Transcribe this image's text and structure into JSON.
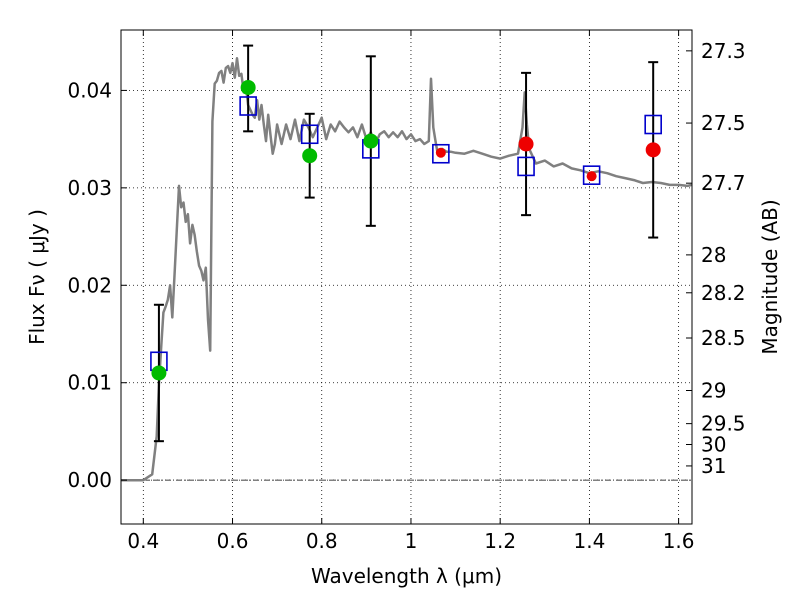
{
  "chart_data": {
    "type": "scatter",
    "title": "",
    "xlabel": "Wavelength  λ (μm)",
    "ylabel": "Flux  Fν  ( μJy )",
    "y2label": "Magnitude (AB)",
    "xlim": [
      0.35,
      1.63
    ],
    "ylim": [
      -0.0045,
      0.0462
    ],
    "x_ticks": [
      0.4,
      0.6,
      0.8,
      1.0,
      1.2,
      1.4,
      1.6
    ],
    "x_tick_labels": [
      "0.4",
      "0.6",
      "0.8",
      "1",
      "1.2",
      "1.4",
      "1.6"
    ],
    "y_ticks": [
      0.0,
      0.01,
      0.02,
      0.03,
      0.04
    ],
    "y_tick_labels": [
      "0.00",
      "0.01",
      "0.02",
      "0.03",
      "0.04"
    ],
    "y2_ticks": [
      {
        "label": "27.3",
        "flux": 0.04406
      },
      {
        "label": "27.5",
        "flux": 0.03665
      },
      {
        "label": "27.7",
        "flux": 0.03048
      },
      {
        "label": "28",
        "flux": 0.02312
      },
      {
        "label": "28.2",
        "flux": 0.01923
      },
      {
        "label": "28.5",
        "flux": 0.01459
      },
      {
        "label": "29",
        "flux": 0.0092
      },
      {
        "label": "29.5",
        "flux": 0.0058
      },
      {
        "label": "30",
        "flux": 0.00366
      },
      {
        "label": "31",
        "flux": 0.00146
      }
    ],
    "grid": true,
    "colors": {
      "sed_line": "#808080",
      "model_square": "#0000cc",
      "green_point": "#00bb00",
      "red_point": "#ee0000",
      "error_bar": "#000000"
    },
    "series": [
      {
        "kind": "line",
        "x": [
          0.35,
          0.4,
          0.42,
          0.43,
          0.435,
          0.44,
          0.445,
          0.45,
          0.455,
          0.46,
          0.465,
          0.47,
          0.475,
          0.48,
          0.485,
          0.49,
          0.495,
          0.5,
          0.505,
          0.51,
          0.515,
          0.52,
          0.525,
          0.53,
          0.535,
          0.54,
          0.545,
          0.55,
          0.555,
          0.56,
          0.565,
          0.57,
          0.575,
          0.58,
          0.585,
          0.59,
          0.595,
          0.6,
          0.605,
          0.61,
          0.615,
          0.62,
          0.625,
          0.63,
          0.635,
          0.64,
          0.645,
          0.65,
          0.655,
          0.66,
          0.665,
          0.67,
          0.675,
          0.68,
          0.685,
          0.69,
          0.695,
          0.7,
          0.71,
          0.72,
          0.73,
          0.74,
          0.75,
          0.76,
          0.77,
          0.78,
          0.79,
          0.8,
          0.81,
          0.82,
          0.83,
          0.84,
          0.85,
          0.86,
          0.87,
          0.88,
          0.89,
          0.9,
          0.91,
          0.92,
          0.93,
          0.94,
          0.95,
          0.96,
          0.97,
          0.98,
          0.99,
          1.0,
          1.01,
          1.02,
          1.03,
          1.04,
          1.045,
          1.05,
          1.055,
          1.06,
          1.07,
          1.08,
          1.09,
          1.1,
          1.12,
          1.14,
          1.16,
          1.18,
          1.2,
          1.22,
          1.24,
          1.25,
          1.255,
          1.26,
          1.265,
          1.27,
          1.28,
          1.3,
          1.32,
          1.34,
          1.36,
          1.38,
          1.4,
          1.42,
          1.44,
          1.46,
          1.48,
          1.5,
          1.52,
          1.54,
          1.56,
          1.58,
          1.6,
          1.62,
          1.63
        ],
        "y": [
          0.0,
          0.0,
          0.0006,
          0.0045,
          0.0098,
          0.0135,
          0.0172,
          0.0178,
          0.0185,
          0.02,
          0.0167,
          0.021,
          0.0257,
          0.0302,
          0.028,
          0.0285,
          0.0265,
          0.0273,
          0.0243,
          0.0262,
          0.0252,
          0.0235,
          0.022,
          0.0215,
          0.0205,
          0.0218,
          0.0165,
          0.0133,
          0.0368,
          0.0407,
          0.041,
          0.0418,
          0.042,
          0.0408,
          0.0423,
          0.0425,
          0.0418,
          0.0428,
          0.0413,
          0.0433,
          0.0415,
          0.0417,
          0.0398,
          0.0405,
          0.0385,
          0.038,
          0.0375,
          0.0372,
          0.039,
          0.037,
          0.0385,
          0.0365,
          0.0348,
          0.0375,
          0.0355,
          0.0335,
          0.0345,
          0.0365,
          0.0345,
          0.0365,
          0.035,
          0.037,
          0.0348,
          0.037,
          0.0362,
          0.0352,
          0.0362,
          0.0372,
          0.035,
          0.0365,
          0.0358,
          0.0368,
          0.0362,
          0.0357,
          0.0362,
          0.0352,
          0.0365,
          0.035,
          0.0357,
          0.0345,
          0.0355,
          0.0358,
          0.0352,
          0.0357,
          0.0352,
          0.0358,
          0.035,
          0.0355,
          0.0348,
          0.035,
          0.0345,
          0.0348,
          0.0412,
          0.0362,
          0.0348,
          0.0335,
          0.034,
          0.0337,
          0.0337,
          0.0336,
          0.0335,
          0.0338,
          0.0335,
          0.0332,
          0.033,
          0.0333,
          0.0335,
          0.0362,
          0.0398,
          0.0365,
          0.034,
          0.0335,
          0.0325,
          0.0328,
          0.0322,
          0.0325,
          0.032,
          0.0318,
          0.0315,
          0.0317,
          0.0315,
          0.0312,
          0.031,
          0.0308,
          0.0305,
          0.0306,
          0.0305,
          0.0303,
          0.0303,
          0.0302,
          0.0303
        ]
      },
      {
        "kind": "squares",
        "x": [
          0.435,
          0.635,
          0.773,
          0.91,
          1.067,
          1.258,
          1.405,
          1.543
        ],
        "y": [
          0.0122,
          0.0384,
          0.0355,
          0.034,
          0.0335,
          0.0322,
          0.0313,
          0.0365
        ]
      },
      {
        "kind": "points",
        "x": [
          0.435,
          0.635,
          0.773,
          0.91,
          1.067,
          1.258,
          1.405,
          1.543
        ],
        "y": [
          0.011,
          0.0403,
          0.0333,
          0.0348,
          0.0336,
          0.0345,
          0.0312,
          0.0339
        ],
        "yerr_low": [
          0.007,
          0.0045,
          0.0043,
          0.0087,
          0.0,
          0.0073,
          0.0,
          0.009
        ],
        "yerr_high": [
          0.007,
          0.0043,
          0.0043,
          0.0087,
          0.0,
          0.0073,
          0.0,
          0.009
        ],
        "colors": [
          "green",
          "green",
          "green",
          "green",
          "red",
          "red",
          "red",
          "red"
        ]
      }
    ]
  }
}
